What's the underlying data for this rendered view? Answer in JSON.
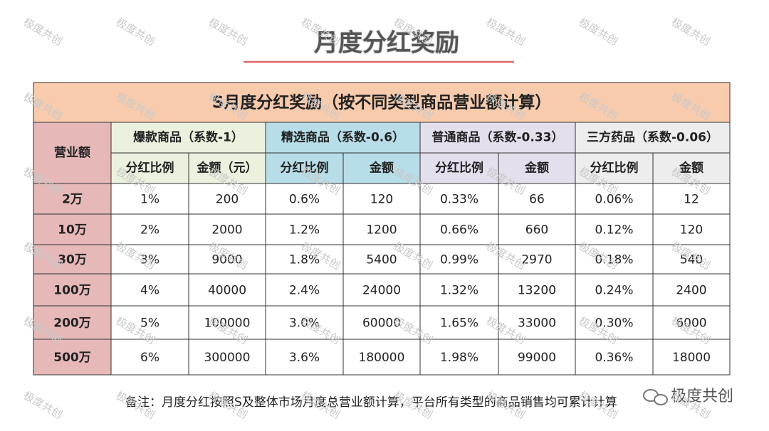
{
  "title": "月度分红奖励",
  "table": {
    "caption": "S月度分红奖励（按不同类型商品营业额计算）",
    "corner": "营业额",
    "groups": [
      "爆款商品（系数-1）",
      "精选商品（系数-0.6）",
      "普通商品（系数-0.33）",
      "三方药品（系数-0.06）"
    ],
    "subheaders": [
      "分红比例",
      "金额（元）",
      "分红比例",
      "金额",
      "分红比例",
      "金额",
      "分红比例",
      "金额"
    ],
    "rows": [
      [
        "2万",
        "1%",
        "200",
        "0.6%",
        "120",
        "0.33%",
        "66",
        "0.06%",
        "12"
      ],
      [
        "10万",
        "2%",
        "2000",
        "1.2%",
        "1200",
        "0.66%",
        "660",
        "0.12%",
        "120"
      ],
      [
        "30万",
        "3%",
        "9000",
        "1.8%",
        "5400",
        "0.99%",
        "2970",
        "0.18%",
        "540"
      ],
      [
        "100万",
        "4%",
        "40000",
        "2.4%",
        "24000",
        "1.32%",
        "13200",
        "0.24%",
        "2400"
      ],
      [
        "200万",
        "5%",
        "100000",
        "3.0%",
        "60000",
        "1.65%",
        "33000",
        "0.30%",
        "6000"
      ],
      [
        "500万",
        "6%",
        "300000",
        "3.6%",
        "180000",
        "1.98%",
        "99000",
        "0.36%",
        "18000"
      ]
    ]
  },
  "note": "备注：月度分红按照S及整体市场月度总营业额计算，平台所有类型的商品销售均可累计计算",
  "brand": "极度共创",
  "watermark": "极度共创"
}
